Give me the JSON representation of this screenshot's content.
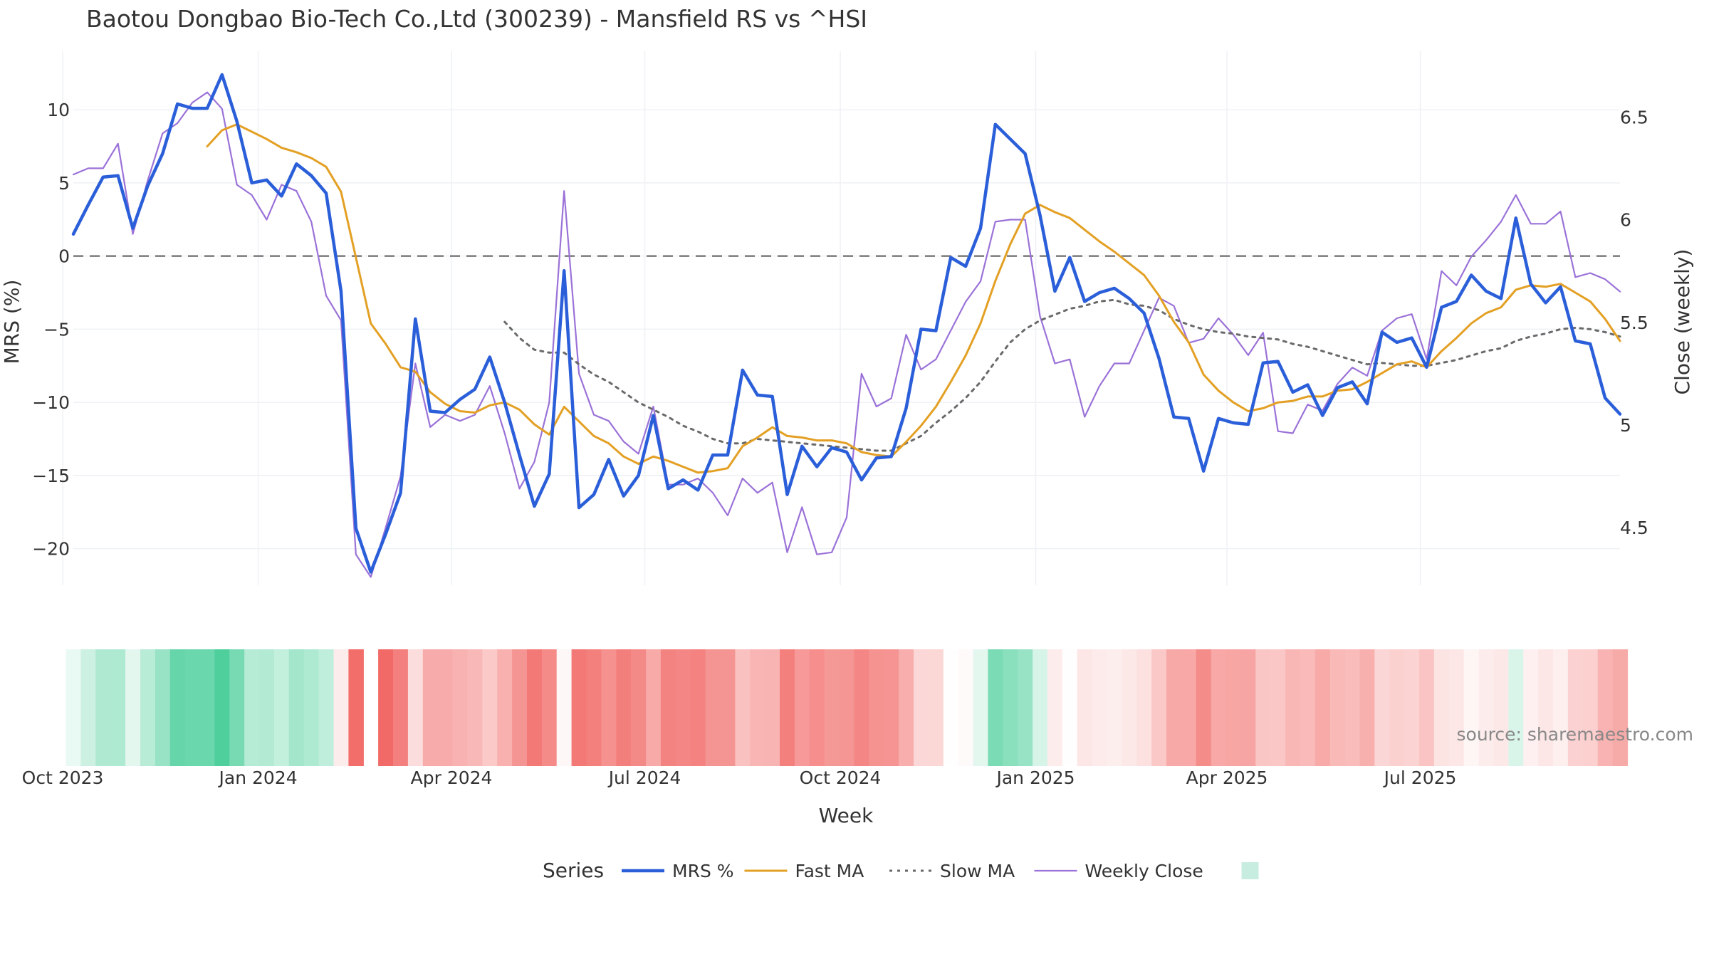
{
  "chart_data": {
    "type": "line",
    "title": "Baotou Dongbao Bio-Tech Co.,Ltd (300239) - Mansfield RS vs ^HSI",
    "xlabel": "Week",
    "ylabel": "MRS (%)",
    "y2label": "Close (weekly)",
    "source": "source: sharemaestro.com",
    "x_start": "2023-10-06",
    "x_end": "2025-10-03",
    "x_ticks": [
      "Oct 2023",
      "Jan 2024",
      "Apr 2024",
      "Jul 2024",
      "Oct 2024",
      "Jan 2025",
      "Apr 2025",
      "Jul 2025"
    ],
    "x_tick_dates": [
      "2023-10-01",
      "2024-01-01",
      "2024-04-01",
      "2024-07-01",
      "2024-10-01",
      "2025-01-01",
      "2025-04-01",
      "2025-07-01"
    ],
    "ylim": [
      -22.5,
      14
    ],
    "y_ticks": [
      10,
      5,
      0,
      -5,
      -10,
      -15,
      -20
    ],
    "y_tick_labels": [
      "10",
      "5",
      "0",
      "−5",
      "−10",
      "−15",
      "−20"
    ],
    "y2lim": [
      4.22,
      6.82
    ],
    "y2_ticks": [
      6.5,
      6,
      5.5,
      5,
      4.5
    ],
    "y2_tick_labels": [
      "6.5",
      "6",
      "5.5",
      "5",
      "4.5"
    ],
    "zero_line": 0,
    "grid": true,
    "legend": {
      "title": "Series",
      "placement": "bottom-center",
      "items": [
        "MRS %",
        "Fast MA",
        "Slow MA",
        "Weekly Close",
        ""
      ]
    },
    "series": [
      {
        "name": "MRS %",
        "color": "#2b5fd9",
        "dash": "solid",
        "axis": "y",
        "values": [
          1.5,
          3.5,
          5.4,
          5.5,
          1.9,
          4.8,
          7.0,
          10.4,
          10.1,
          10.1,
          12.4,
          9.2,
          5.0,
          5.2,
          4.1,
          6.3,
          5.5,
          4.3,
          -2.4,
          -18.6,
          -21.6,
          -19.0,
          -16.2,
          -4.3,
          -10.6,
          -10.7,
          -9.8,
          -9.1,
          -6.9,
          -10.0,
          -13.6,
          -17.1,
          -14.9,
          -1.0,
          -17.2,
          -16.3,
          -13.9,
          -16.4,
          -15.0,
          -10.9,
          -15.9,
          -15.3,
          -16.0,
          -13.6,
          -13.6,
          -7.8,
          -9.5,
          -9.6,
          -16.3,
          -13.0,
          -14.4,
          -13.1,
          -13.4,
          -15.3,
          -13.8,
          -13.7,
          -10.4,
          -5.0,
          -5.1,
          -0.1,
          -0.7,
          1.9,
          9.0,
          8.0,
          7.0,
          2.8,
          -2.4,
          -0.1,
          -3.1,
          -2.5,
          -2.2,
          -2.9,
          -3.9,
          -7.0,
          -11.0,
          -11.1,
          -14.7,
          -11.1,
          -11.4,
          -11.5,
          -7.3,
          -7.2,
          -9.3,
          -8.8,
          -10.9,
          -9.0,
          -8.6,
          -10.1,
          -5.2,
          -5.9,
          -5.6,
          -7.6,
          -3.5,
          -3.1,
          -1.3,
          -2.4,
          -2.9,
          2.6,
          -1.9,
          -3.2,
          -2.1,
          -5.8,
          -6.0,
          -9.7,
          -10.8
        ]
      },
      {
        "name": "Fast MA",
        "color": "#e3a024",
        "dash": "solid",
        "axis": "y",
        "values": [
          null,
          null,
          null,
          null,
          null,
          null,
          null,
          null,
          null,
          7.5,
          8.6,
          9.0,
          8.5,
          8.0,
          7.4,
          7.1,
          6.7,
          6.1,
          4.4,
          -0.1,
          -4.6,
          -6.0,
          -7.6,
          -7.9,
          -9.3,
          -10.1,
          -10.6,
          -10.7,
          -10.2,
          -10.0,
          -10.5,
          -11.5,
          -12.2,
          -10.3,
          -11.3,
          -12.3,
          -12.8,
          -13.7,
          -14.2,
          -13.7,
          -14.0,
          -14.4,
          -14.8,
          -14.7,
          -14.5,
          -13.0,
          -12.4,
          -11.7,
          -12.3,
          -12.4,
          -12.6,
          -12.6,
          -12.8,
          -13.4,
          -13.6,
          -13.7,
          -12.7,
          -11.6,
          -10.3,
          -8.6,
          -6.8,
          -4.6,
          -1.7,
          0.8,
          2.9,
          3.5,
          3.0,
          2.6,
          1.8,
          1.0,
          0.3,
          -0.5,
          -1.3,
          -2.7,
          -4.5,
          -5.9,
          -8.1,
          -9.2,
          -10.0,
          -10.6,
          -10.4,
          -10.0,
          -9.9,
          -9.6,
          -9.6,
          -9.2,
          -9.1,
          -8.6,
          -8.0,
          -7.4,
          -7.2,
          -7.6,
          -6.5,
          -5.6,
          -4.6,
          -3.9,
          -3.5,
          -2.3,
          -2.0,
          -2.1,
          -1.9,
          -2.5,
          -3.1,
          -4.3,
          -5.8
        ]
      },
      {
        "name": "Slow MA",
        "color": "#6a6a6a",
        "dash": "dot",
        "axis": "y",
        "values": [
          null,
          null,
          null,
          null,
          null,
          null,
          null,
          null,
          null,
          null,
          null,
          null,
          null,
          null,
          null,
          null,
          null,
          null,
          null,
          null,
          null,
          null,
          null,
          null,
          null,
          null,
          null,
          null,
          null,
          -4.5,
          -5.6,
          -6.4,
          -6.6,
          -6.6,
          -7.4,
          -8.1,
          -8.6,
          -9.3,
          -10.0,
          -10.5,
          -11.0,
          -11.6,
          -12.0,
          -12.5,
          -12.8,
          -12.8,
          -12.5,
          -12.6,
          -12.7,
          -12.8,
          -12.9,
          -13.0,
          -13.1,
          -13.2,
          -13.3,
          -13.3,
          -12.8,
          -12.3,
          -11.4,
          -10.6,
          -9.7,
          -8.6,
          -7.2,
          -5.9,
          -5.0,
          -4.4,
          -4.0,
          -3.6,
          -3.4,
          -3.1,
          -3.0,
          -3.3,
          -3.4,
          -3.7,
          -4.3,
          -4.7,
          -5.0,
          -5.2,
          -5.3,
          -5.5,
          -5.6,
          -5.7,
          -6.0,
          -6.2,
          -6.5,
          -6.8,
          -7.1,
          -7.4,
          -7.3,
          -7.4,
          -7.5,
          -7.5,
          -7.3,
          -7.1,
          -6.8,
          -6.5,
          -6.3,
          -5.8,
          -5.5,
          -5.3,
          -5.0,
          -4.9,
          -5.0,
          -5.2,
          -5.5
        ]
      },
      {
        "name": "Weekly Close",
        "color": "#9b72d8",
        "dash": "solid",
        "axis": "y2",
        "values": [
          6.22,
          6.25,
          6.25,
          6.37,
          5.93,
          6.19,
          6.42,
          6.47,
          6.57,
          6.62,
          6.54,
          6.17,
          6.12,
          6.0,
          6.17,
          6.14,
          5.99,
          5.63,
          5.51,
          4.37,
          4.26,
          4.5,
          4.75,
          5.3,
          4.99,
          5.05,
          5.02,
          5.05,
          5.19,
          4.96,
          4.69,
          4.82,
          5.11,
          6.14,
          5.25,
          5.05,
          5.02,
          4.92,
          4.86,
          5.09,
          4.71,
          4.71,
          4.74,
          4.67,
          4.56,
          4.74,
          4.67,
          4.72,
          4.38,
          4.6,
          4.37,
          4.38,
          4.55,
          5.25,
          5.09,
          5.13,
          5.44,
          5.27,
          5.32,
          5.46,
          5.6,
          5.7,
          5.99,
          6.0,
          6.0,
          5.53,
          5.3,
          5.32,
          5.04,
          5.19,
          5.3,
          5.3,
          5.46,
          5.62,
          5.58,
          5.4,
          5.42,
          5.52,
          5.44,
          5.34,
          5.45,
          4.97,
          4.96,
          5.1,
          5.07,
          5.2,
          5.28,
          5.24,
          5.46,
          5.52,
          5.54,
          5.32,
          5.75,
          5.68,
          5.82,
          5.9,
          5.99,
          6.12,
          5.98,
          5.98,
          6.04,
          5.72,
          5.74,
          5.71,
          5.65
        ]
      }
    ],
    "heatmap": {
      "type": "heatmap",
      "colorscale": [
        "#ef5350",
        "#ffffff",
        "#4fcf9c"
      ],
      "zmin": -22,
      "zmax": 12,
      "values": [
        1.5,
        3.5,
        5.4,
        5.5,
        1.9,
        4.8,
        7.0,
        10.4,
        10.1,
        10.1,
        12.4,
        9.2,
        5.0,
        5.2,
        4.1,
        6.3,
        5.5,
        4.3,
        -2.4,
        -18.6,
        null,
        -19.0,
        -16.2,
        -4.3,
        -10.6,
        -10.7,
        -9.8,
        -9.1,
        -6.9,
        -10.0,
        -13.6,
        -17.1,
        -14.9,
        -1.0,
        -17.2,
        -16.3,
        -13.9,
        -16.4,
        -15.0,
        -10.9,
        -15.9,
        -15.3,
        -16.0,
        -13.6,
        -13.6,
        -7.8,
        -9.5,
        -9.6,
        -16.3,
        -13.0,
        -14.4,
        -13.1,
        -13.4,
        -15.3,
        -13.8,
        -13.7,
        -10.4,
        -5.0,
        -5.1,
        -0.1,
        -0.7,
        1.9,
        9.0,
        8.0,
        7.0,
        2.8,
        -2.4,
        -0.1,
        -3.1,
        -2.5,
        -2.2,
        -2.9,
        -3.9,
        -7.0,
        -11.0,
        -11.1,
        -14.7,
        -11.1,
        -11.4,
        -11.5,
        -7.3,
        -7.2,
        -9.3,
        -8.8,
        -10.9,
        -9.0,
        -8.6,
        -10.1,
        -5.2,
        -5.9,
        -5.6,
        -7.6,
        -3.5,
        -3.1,
        -1.3,
        -2.4,
        -2.9,
        2.6,
        -1.9,
        -3.2,
        -2.1,
        -5.8,
        -6.0,
        -9.7,
        -10.8
      ]
    }
  }
}
